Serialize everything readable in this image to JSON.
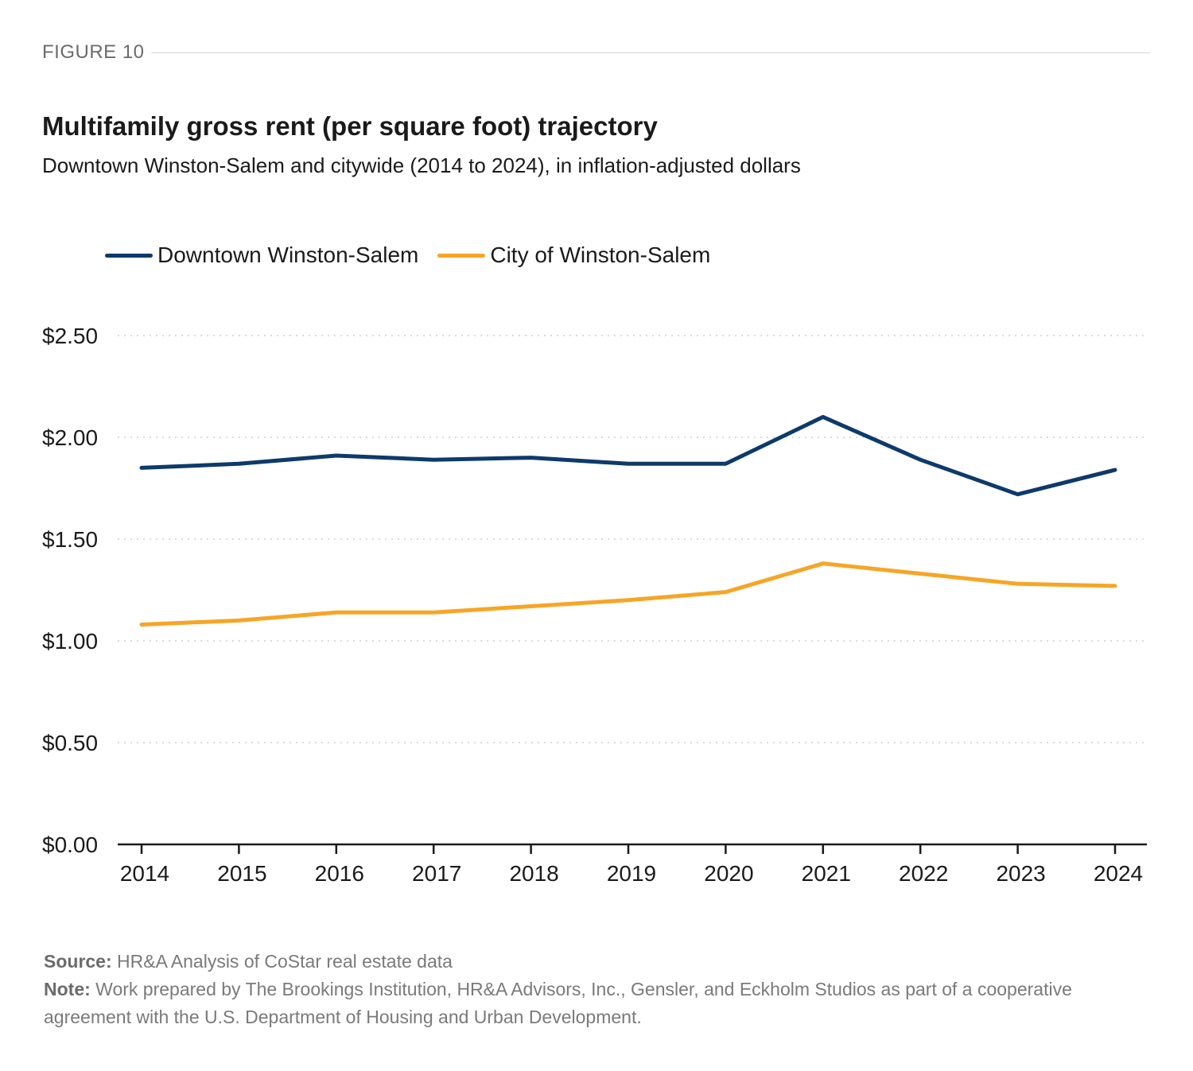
{
  "figure_label": "FIGURE 10",
  "title": "Multifamily gross rent (per square foot) trajectory",
  "subtitle": "Downtown Winston-Salem and citywide (2014 to 2024), in inflation-adjusted dollars",
  "source_label": "Source:",
  "source_text": "HR&A Analysis of CoStar real estate data",
  "note_label": "Note:",
  "note_text": "Work prepared by The Brookings Institution, HR&A Advisors, Inc., Gensler, and Eckholm Studios as part of a cooperative agreement with the U.S. Department of Housing and Urban Development.",
  "chart_data": {
    "type": "line",
    "title": "Multifamily gross rent (per square foot) trajectory",
    "subtitle": "Downtown Winston-Salem and citywide (2014 to 2024), in inflation-adjusted dollars",
    "xlabel": "",
    "ylabel": "",
    "x": [
      "2014",
      "2015",
      "2016",
      "2017",
      "2018",
      "2019",
      "2020",
      "2021",
      "2022",
      "2023",
      "2024"
    ],
    "ylim": [
      0,
      2.5
    ],
    "yticks": [
      0,
      0.5,
      1.0,
      1.5,
      2.0,
      2.5
    ],
    "ytick_labels": [
      "$0.00",
      "$0.50",
      "$1.00",
      "$1.50",
      "$2.00",
      "$2.50"
    ],
    "grid": "horizontal dotted",
    "legend_position": "top-left",
    "series": [
      {
        "name": "Downtown Winston-Salem",
        "color": "#0e3a6b",
        "values": [
          1.85,
          1.87,
          1.91,
          1.89,
          1.9,
          1.87,
          1.87,
          2.1,
          1.89,
          1.72,
          1.84
        ]
      },
      {
        "name": "City of Winston-Salem",
        "color": "#f7a526",
        "values": [
          1.08,
          1.1,
          1.14,
          1.14,
          1.17,
          1.2,
          1.24,
          1.38,
          1.33,
          1.28,
          1.27
        ]
      }
    ]
  }
}
